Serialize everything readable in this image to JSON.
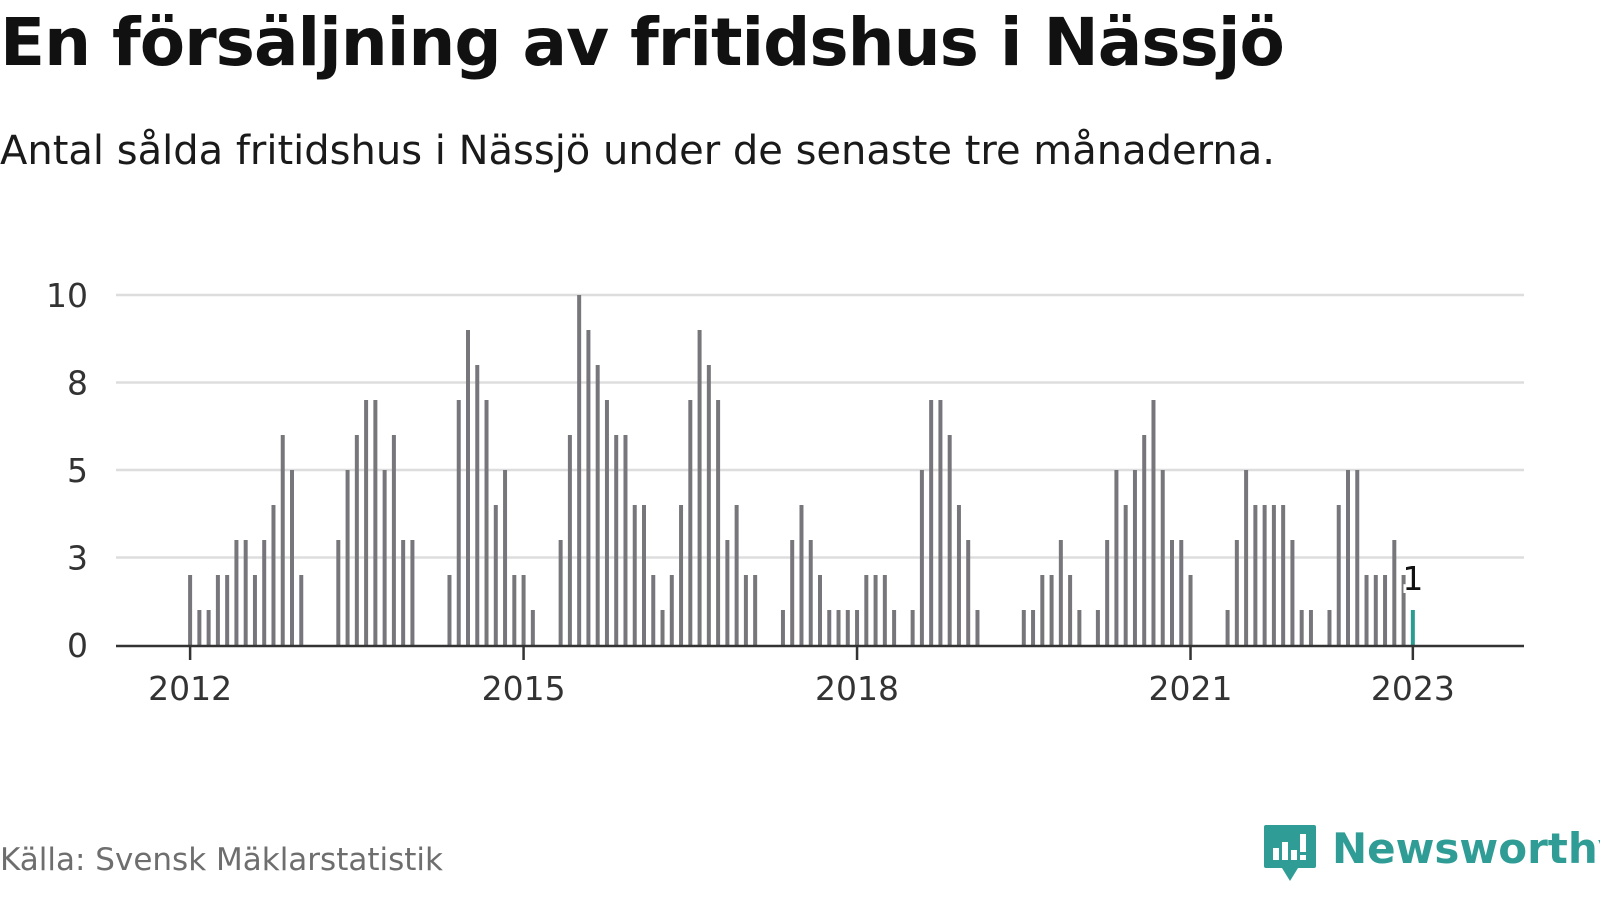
{
  "title": "En försäljning av fritidshus i Nässjö",
  "subtitle": "Antal sålda fritidshus i Nässjö under de senaste tre månaderna.",
  "source": "Källa: Svensk Mäklarstatistik",
  "brand": {
    "name": "Newsworthy",
    "icon": "newsworthy-chart-bubble-icon"
  },
  "colors": {
    "bar": "#77767b",
    "highlight": "#2a9d90",
    "grid": "#dddddd",
    "axis": "#333333",
    "brand": "#2f9d95"
  },
  "chart_data": {
    "type": "bar",
    "title": "",
    "xlabel": "",
    "ylabel": "",
    "ylim": [
      0,
      10
    ],
    "y_ticks": [
      {
        "value": 0,
        "label": "0"
      },
      {
        "value": 2.5,
        "label": "3"
      },
      {
        "value": 5,
        "label": "5"
      },
      {
        "value": 7.5,
        "label": "8"
      },
      {
        "value": 10,
        "label": "10"
      }
    ],
    "x_ticks": [
      {
        "value": "2012-01",
        "label": "2012"
      },
      {
        "value": "2015-01",
        "label": "2015"
      },
      {
        "value": "2018-01",
        "label": "2018"
      },
      {
        "value": "2021-01",
        "label": "2021"
      },
      {
        "value": "2023-01",
        "label": "2023"
      }
    ],
    "x_range": [
      "2011-05",
      "2024-01"
    ],
    "grid": true,
    "start_month": "2012-01",
    "frequency": "monthly",
    "values": [
      2,
      1,
      1,
      2,
      2,
      3,
      3,
      2,
      3,
      4,
      6,
      5,
      2,
      0,
      0,
      0,
      3,
      5,
      6,
      7,
      7,
      5,
      6,
      3,
      3,
      0,
      0,
      0,
      2,
      7,
      9,
      8,
      7,
      4,
      5,
      2,
      2,
      1,
      0,
      0,
      3,
      6,
      10,
      9,
      8,
      7,
      6,
      6,
      4,
      4,
      2,
      1,
      2,
      4,
      7,
      9,
      8,
      7,
      3,
      4,
      2,
      2,
      0,
      0,
      1,
      3,
      4,
      3,
      2,
      1,
      1,
      1,
      1,
      2,
      2,
      2,
      1,
      0,
      1,
      5,
      7,
      7,
      6,
      4,
      3,
      1,
      0,
      0,
      0,
      0,
      1,
      1,
      2,
      2,
      3,
      2,
      1,
      0,
      1,
      3,
      5,
      4,
      5,
      6,
      7,
      5,
      3,
      3,
      2,
      0,
      0,
      0,
      1,
      3,
      5,
      4,
      4,
      4,
      4,
      3,
      1,
      1,
      0,
      1,
      4,
      5,
      5,
      2,
      2,
      2,
      3,
      2,
      1
    ],
    "highlight": {
      "month": "2023-01",
      "value": 1,
      "label": "1"
    }
  }
}
